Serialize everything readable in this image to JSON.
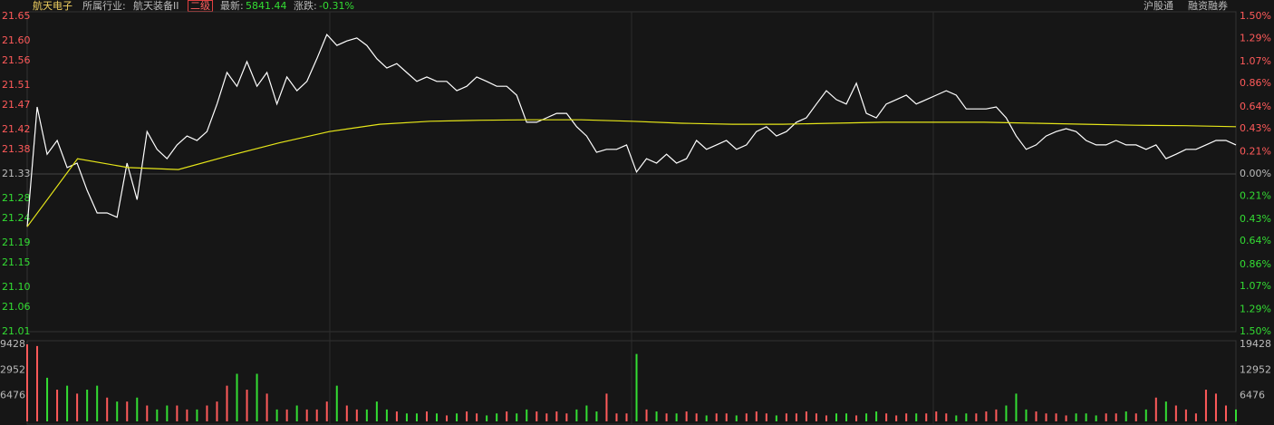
{
  "header": {
    "name": "航天电子",
    "industry_label": "所属行业:",
    "industry": "航天装备II",
    "level": "二级",
    "latest_label": "最新:",
    "latest": "5841.44",
    "change_label": "涨跌:",
    "change": "-0.31%",
    "right_1": "沪股通",
    "right_2": "融资融券"
  },
  "chart_data": {
    "type": "line",
    "ylim": [
      21.01,
      21.65
    ],
    "yticks": [
      {
        "value": 21.65,
        "label": "21.65"
      },
      {
        "value": 21.6,
        "label": "21.60"
      },
      {
        "value": 21.56,
        "label": "21.56"
      },
      {
        "value": 21.51,
        "label": "21.51"
      },
      {
        "value": 21.47,
        "label": "21.47"
      },
      {
        "value": 21.42,
        "label": "21.42"
      },
      {
        "value": 21.38,
        "label": "21.38"
      },
      {
        "value": 21.33,
        "label": "21.33"
      },
      {
        "value": 21.28,
        "label": "21.28"
      },
      {
        "value": 21.24,
        "label": "21.24"
      },
      {
        "value": 21.19,
        "label": "21.19"
      },
      {
        "value": 21.15,
        "label": "21.15"
      },
      {
        "value": 21.1,
        "label": "21.10"
      },
      {
        "value": 21.06,
        "label": "21.06"
      },
      {
        "value": 21.01,
        "label": "21.01"
      }
    ],
    "y2lim": [
      -1.5,
      1.5
    ],
    "y2ticks": [
      {
        "value": 1.5,
        "label": "1.50%"
      },
      {
        "value": 1.29,
        "label": "1.29%"
      },
      {
        "value": 1.07,
        "label": "1.07%"
      },
      {
        "value": 0.86,
        "label": "0.86%"
      },
      {
        "value": 0.64,
        "label": "0.64%"
      },
      {
        "value": 0.43,
        "label": "0.43%"
      },
      {
        "value": 0.21,
        "label": "0.21%"
      },
      {
        "value": 0,
        "label": "0.00%"
      },
      {
        "value": -0.21,
        "label": "0.21%"
      },
      {
        "value": -0.43,
        "label": "0.43%"
      },
      {
        "value": -0.64,
        "label": "0.64%"
      },
      {
        "value": -0.86,
        "label": "0.86%"
      },
      {
        "value": -1.07,
        "label": "1.07%"
      },
      {
        "value": -1.29,
        "label": "1.29%"
      },
      {
        "value": -1.5,
        "label": "1.50%"
      }
    ],
    "series": [
      {
        "color": "#ffffff",
        "values": [
          21.223,
          21.466,
          21.37,
          21.398,
          21.343,
          21.352,
          21.297,
          21.251,
          21.251,
          21.242,
          21.352,
          21.278,
          21.416,
          21.38,
          21.361,
          21.389,
          21.407,
          21.398,
          21.416,
          21.472,
          21.536,
          21.508,
          21.558,
          21.508,
          21.536,
          21.472,
          21.527,
          21.499,
          21.518,
          21.564,
          21.613,
          21.591,
          21.6,
          21.606,
          21.591,
          21.564,
          21.545,
          21.554,
          21.536,
          21.518,
          21.527,
          21.518,
          21.518,
          21.499,
          21.508,
          21.527,
          21.518,
          21.508,
          21.508,
          21.49,
          21.435,
          21.435,
          21.444,
          21.453,
          21.453,
          21.426,
          21.407,
          21.374,
          21.38,
          21.38,
          21.389,
          21.334,
          21.361,
          21.352,
          21.37,
          21.352,
          21.361,
          21.398,
          21.38,
          21.389,
          21.398,
          21.38,
          21.389,
          21.416,
          21.426,
          21.407,
          21.416,
          21.435,
          21.444,
          21.472,
          21.499,
          21.481,
          21.472,
          21.514,
          21.453,
          21.444,
          21.472,
          21.481,
          21.49,
          21.472,
          21.481,
          21.49,
          21.499,
          21.49,
          21.462,
          21.462,
          21.462,
          21.466,
          21.444,
          21.407,
          21.38,
          21.389,
          21.407,
          21.416,
          21.422,
          21.416,
          21.398,
          21.389,
          21.389,
          21.398,
          21.389,
          21.389,
          21.38,
          21.389,
          21.361,
          21.37,
          21.38,
          21.38,
          21.389,
          21.398,
          21.398,
          21.389
        ]
      },
      {
        "color": "#e6e619",
        "values": [
          21.223,
          21.361,
          21.343,
          21.339,
          21.367,
          21.393,
          21.416,
          21.431,
          21.437,
          21.439,
          21.44,
          21.44,
          21.437,
          21.433,
          21.431,
          21.431,
          21.433,
          21.435,
          21.435,
          21.435,
          21.433,
          21.431,
          21.429,
          21.428,
          21.426
        ]
      }
    ],
    "volume": {
      "ylim": [
        0,
        19428
      ],
      "yticks": [
        6476,
        12952,
        19428
      ],
      "up_color": "#ff5a5a",
      "down_color": "#33dd33",
      "values": [
        19428,
        19000,
        11000,
        8000,
        9000,
        7000,
        8000,
        9000,
        6000,
        5000,
        5000,
        6000,
        4000,
        3000,
        4000,
        4000,
        3000,
        3000,
        4000,
        5000,
        9000,
        12000,
        8000,
        12000,
        7000,
        3000,
        3000,
        4000,
        3000,
        3000,
        5000,
        9000,
        4000,
        3000,
        3000,
        5000,
        3000,
        2500,
        2000,
        2000,
        2500,
        2000,
        1500,
        2000,
        2500,
        2000,
        1500,
        2000,
        2500,
        2000,
        3000,
        2500,
        2000,
        2500,
        2000,
        3000,
        4000,
        2500,
        7000,
        2000,
        2000,
        17000,
        3000,
        2500,
        2000,
        2000,
        2500,
        2000,
        1500,
        2000,
        2000,
        1500,
        2000,
        2500,
        2000,
        1500,
        2000,
        2000,
        2500,
        2000,
        1500,
        2000,
        2000,
        1500,
        2000,
        2500,
        2000,
        1500,
        2000,
        2000,
        2000,
        2500,
        2000,
        1500,
        2000,
        2000,
        2500,
        3000,
        4000,
        7000,
        3000,
        2500,
        2000,
        2000,
        1500,
        2000,
        2000,
        1500,
        2000,
        2000,
        2500,
        2000,
        3000,
        6000,
        5000,
        4000,
        3000,
        2000,
        8000,
        7000,
        4000,
        3000
      ]
    }
  }
}
